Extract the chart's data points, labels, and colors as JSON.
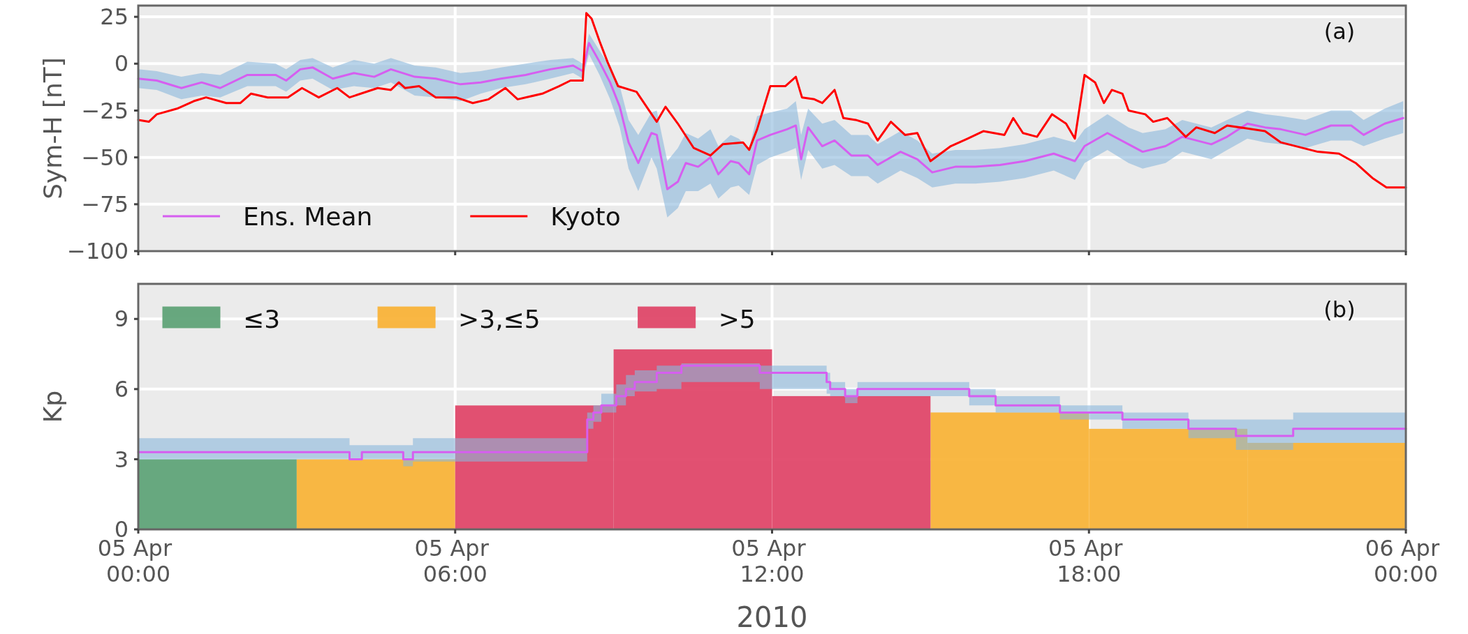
{
  "chart_data": [
    {
      "type": "line",
      "ylabel": "Sym-H [nT]",
      "xlim": [
        "2010-04-05T00:00",
        "2010-04-06T00:00"
      ],
      "ylim": [
        -100,
        31
      ],
      "xticks": [
        {
          "value": "2010-04-05T00:00",
          "label": null
        },
        {
          "value": "2010-04-05T06:00",
          "label": null
        },
        {
          "value": "2010-04-05T12:00",
          "label": null
        },
        {
          "value": "2010-04-05T18:00",
          "label": null
        },
        {
          "value": "2010-04-06T00:00",
          "label": null
        }
      ],
      "yticks": [
        {
          "value": -100,
          "label": "−100"
        },
        {
          "value": -75,
          "label": "−75"
        },
        {
          "value": -50,
          "label": "−50"
        },
        {
          "value": -25,
          "label": "−25"
        },
        0,
        25
      ],
      "grid": true,
      "legend": "bottom left",
      "tick_labels": "y",
      "annotations": [
        "(a)"
      ],
      "series": [
        {
          "name": "Ens. Mean",
          "color": "#d65ef0",
          "x": [
            "2010-04-05T00:00",
            "2010-04-05T00:21",
            "2010-04-05T00:49",
            "2010-04-05T01:12",
            "2010-04-05T01:33",
            "2010-04-05T02:04",
            "2010-04-05T02:36",
            "2010-04-05T02:48",
            "2010-04-05T03:04",
            "2010-04-05T03:18",
            "2010-04-05T03:41",
            "2010-04-05T04:05",
            "2010-04-05T04:28",
            "2010-04-05T04:47",
            "2010-04-05T05:14",
            "2010-04-05T05:38",
            "2010-04-05T06:06",
            "2010-04-05T06:29",
            "2010-04-05T06:52",
            "2010-04-05T07:20",
            "2010-04-05T07:48",
            "2010-04-05T08:14",
            "2010-04-05T08:25",
            "2010-04-05T08:32",
            "2010-04-05T08:44",
            "2010-04-05T08:56",
            "2010-04-05T09:07",
            "2010-04-05T09:17",
            "2010-04-05T09:28",
            "2010-04-05T09:43",
            "2010-04-05T09:49",
            "2010-04-05T10:01",
            "2010-04-05T10:13",
            "2010-04-05T10:22",
            "2010-04-05T10:36",
            "2010-04-05T10:50",
            "2010-04-05T10:59",
            "2010-04-05T11:13",
            "2010-04-05T11:22",
            "2010-04-05T11:34",
            "2010-04-05T11:43",
            "2010-04-05T11:58",
            "2010-04-05T12:17",
            "2010-04-05T12:27",
            "2010-04-05T12:33",
            "2010-04-05T12:41",
            "2010-04-05T12:57",
            "2010-04-05T13:11",
            "2010-04-05T13:30",
            "2010-04-05T13:49",
            "2010-04-05T14:00",
            "2010-04-05T14:26",
            "2010-04-05T14:45",
            "2010-04-05T15:02",
            "2010-04-05T15:28",
            "2010-04-05T15:51",
            "2010-04-05T16:19",
            "2010-04-05T16:47",
            "2010-04-05T17:20",
            "2010-04-05T17:44",
            "2010-04-05T17:55",
            "2010-04-05T18:21",
            "2010-04-05T18:45",
            "2010-04-05T19:01",
            "2010-04-05T19:27",
            "2010-04-05T19:46",
            "2010-04-05T20:19",
            "2010-04-05T20:37",
            "2010-04-05T21:00",
            "2010-04-05T21:20",
            "2010-04-05T21:38",
            "2010-04-05T22:06",
            "2010-04-05T22:35",
            "2010-04-05T22:58",
            "2010-04-05T23:12",
            "2010-04-05T23:36",
            "2010-04-05T23:57"
          ],
          "values": [
            -8,
            -9,
            -13,
            -10,
            -13,
            -6,
            -6,
            -9,
            -3,
            -2,
            -8,
            -5,
            -7,
            -3,
            -7,
            -8,
            -11,
            -10,
            -8,
            -6,
            -3,
            -1,
            -4,
            11,
            1,
            -10,
            -23,
            -42,
            -53,
            -37,
            -38,
            -67,
            -63,
            -53,
            -55,
            -50,
            -59,
            -52,
            -53,
            -59,
            -41,
            -38,
            -35,
            -33,
            -51,
            -34,
            -44,
            -41,
            -49,
            -49,
            -54,
            -47,
            -51,
            -58,
            -55,
            -55,
            -54,
            -52,
            -48,
            -52,
            -44,
            -37,
            -43,
            -47,
            -44,
            -39,
            -43,
            -39,
            -32,
            -34,
            -35,
            -38,
            -33,
            -33,
            -38,
            -32,
            -29
          ],
          "lower": [
            -13,
            -14,
            -19,
            -17,
            -18,
            -12,
            -12,
            -15,
            -9,
            -8,
            -14,
            -12,
            -13,
            -10,
            -17,
            -18,
            -20,
            -16,
            -13,
            -11,
            -8,
            -5,
            -8,
            5,
            -6,
            -19,
            -34,
            -56,
            -68,
            -50,
            -56,
            -82,
            -77,
            -68,
            -68,
            -64,
            -72,
            -66,
            -65,
            -70,
            -54,
            -50,
            -47,
            -45,
            -62,
            -46,
            -56,
            -54,
            -60,
            -60,
            -64,
            -57,
            -61,
            -66,
            -64,
            -64,
            -63,
            -61,
            -57,
            -62,
            -53,
            -46,
            -53,
            -56,
            -53,
            -47,
            -51,
            -46,
            -40,
            -42,
            -43,
            -45,
            -41,
            -41,
            -44,
            -40,
            -37
          ],
          "upper": [
            -3,
            -4,
            -7,
            -5,
            -6,
            1,
            0,
            -3,
            2,
            3,
            -2,
            2,
            0,
            3,
            -1,
            -2,
            -5,
            -4,
            -2,
            0,
            2,
            3,
            0,
            16,
            7,
            -2,
            -12,
            -30,
            -38,
            -26,
            -25,
            -52,
            -45,
            -37,
            -40,
            -35,
            -44,
            -38,
            -40,
            -45,
            -28,
            -26,
            -24,
            -20,
            -38,
            -24,
            -32,
            -30,
            -38,
            -38,
            -43,
            -36,
            -41,
            -48,
            -46,
            -46,
            -45,
            -43,
            -39,
            -42,
            -35,
            -27,
            -34,
            -37,
            -35,
            -30,
            -34,
            -30,
            -25,
            -27,
            -28,
            -30,
            -25,
            -25,
            -30,
            -24,
            -20
          ]
        },
        {
          "name": "Kyoto",
          "color": "#ff0000",
          "x": [
            "2010-04-05T00:00",
            "2010-04-05T00:12",
            "2010-04-05T00:21",
            "2010-04-05T00:44",
            "2010-04-05T01:03",
            "2010-04-05T01:17",
            "2010-04-05T01:40",
            "2010-04-05T01:56",
            "2010-04-05T02:08",
            "2010-04-05T02:27",
            "2010-04-05T02:50",
            "2010-04-05T03:06",
            "2010-04-05T03:25",
            "2010-04-05T03:46",
            "2010-04-05T04:00",
            "2010-04-05T04:32",
            "2010-04-05T04:47",
            "2010-04-05T04:56",
            "2010-04-05T05:03",
            "2010-04-05T05:19",
            "2010-04-05T05:38",
            "2010-04-05T06:01",
            "2010-04-05T06:20",
            "2010-04-05T06:38",
            "2010-04-05T06:57",
            "2010-04-05T07:11",
            "2010-04-05T07:39",
            "2010-04-05T07:58",
            "2010-04-05T08:11",
            "2010-04-05T08:25",
            "2010-04-05T08:29",
            "2010-04-05T08:35",
            "2010-04-05T08:44",
            "2010-04-05T08:53",
            "2010-04-05T09:05",
            "2010-04-05T09:26",
            "2010-04-05T09:49",
            "2010-04-05T09:59",
            "2010-04-05T10:13",
            "2010-04-05T10:31",
            "2010-04-05T10:50",
            "2010-04-05T11:04",
            "2010-04-05T11:27",
            "2010-04-05T11:34",
            "2010-04-05T11:43",
            "2010-04-05T11:58",
            "2010-04-05T12:15",
            "2010-04-05T12:27",
            "2010-04-05T12:34",
            "2010-04-05T12:48",
            "2010-04-05T12:57",
            "2010-04-05T13:11",
            "2010-04-05T13:21",
            "2010-04-05T13:35",
            "2010-04-05T13:49",
            "2010-04-05T14:00",
            "2010-04-05T14:15",
            "2010-04-05T14:31",
            "2010-04-05T14:45",
            "2010-04-05T15:00",
            "2010-04-05T15:23",
            "2010-04-05T15:42",
            "2010-04-05T16:00",
            "2010-04-05T16:24",
            "2010-04-05T16:34",
            "2010-04-05T16:45",
            "2010-04-05T17:01",
            "2010-04-05T17:18",
            "2010-04-05T17:34",
            "2010-04-05T17:44",
            "2010-04-05T17:55",
            "2010-04-05T18:07",
            "2010-04-05T18:17",
            "2010-04-05T18:26",
            "2010-04-05T18:38",
            "2010-04-05T18:45",
            "2010-04-05T19:04",
            "2010-04-05T19:13",
            "2010-04-05T19:29",
            "2010-04-05T19:50",
            "2010-04-05T20:02",
            "2010-04-05T20:23",
            "2010-04-05T20:37",
            "2010-04-05T21:20",
            "2010-04-05T21:38",
            "2010-04-05T22:20",
            "2010-04-05T22:44",
            "2010-04-05T23:03",
            "2010-04-05T23:22",
            "2010-04-05T23:38",
            "2010-04-06T00:00"
          ],
          "values": [
            -30,
            -31,
            -27,
            -24,
            -20,
            -18,
            -21,
            -21,
            -16,
            -18,
            -18,
            -13,
            -18,
            -13,
            -18,
            -13,
            -14,
            -10,
            -13,
            -12,
            -18,
            -18,
            -21,
            -19,
            -13,
            -19,
            -16,
            -12,
            -9,
            -9,
            27,
            24,
            12,
            1,
            -12,
            -15,
            -31,
            -23,
            -32,
            -45,
            -49,
            -43,
            -42,
            -46,
            -35,
            -12,
            -12,
            -7,
            -18,
            -19,
            -21,
            -14,
            -29,
            -30,
            -32,
            -41,
            -31,
            -38,
            -37,
            -52,
            -44,
            -40,
            -36,
            -38,
            -29,
            -37,
            -39,
            -27,
            -32,
            -40,
            -6,
            -10,
            -21,
            -14,
            -16,
            -25,
            -27,
            -31,
            -29,
            -39,
            -34,
            -37,
            -33,
            -36,
            -42,
            -47,
            -48,
            -53,
            -61,
            -66,
            -66
          ]
        }
      ]
    },
    {
      "type": "bar",
      "ylabel": "Kp",
      "xlabel": "2010",
      "xlim": [
        "2010-04-05T00:00",
        "2010-04-06T00:00"
      ],
      "ylim": [
        0,
        10.5
      ],
      "xticks": [
        {
          "value": "2010-04-05T00:00",
          "label": "05 Apr 00:00"
        },
        {
          "value": "2010-04-05T06:00",
          "label": "05 Apr 06:00"
        },
        {
          "value": "2010-04-05T12:00",
          "label": "05 Apr 12:00"
        },
        {
          "value": "2010-04-05T18:00",
          "label": "05 Apr 18:00"
        },
        {
          "value": "2010-04-06T00:00",
          "label": "06 Apr 00:00"
        }
      ],
      "yticks": [
        0,
        3,
        6,
        9
      ],
      "grid": true,
      "legend": "top left",
      "annotations": [
        "(b)"
      ],
      "series": [
        {
          "name": "≤3",
          "color": "#60a479",
          "x": [
            "2010-04-05T01:30"
          ],
          "values": [
            3.0
          ]
        },
        {
          "name": ">3,≤5",
          "color": "#f9b43a",
          "x": [
            "2010-04-05T04:30",
            "2010-04-05T16:30",
            "2010-04-05T19:30",
            "2010-04-05T22:30"
          ],
          "values": [
            3.0,
            5.0,
            4.3,
            3.7
          ]
        },
        {
          "name": ">5",
          "color": "#e0486a",
          "x": [
            "2010-04-05T07:30",
            "2010-04-05T10:30",
            "2010-04-05T13:30"
          ],
          "values": [
            5.3,
            7.7,
            5.7
          ]
        },
        {
          "type": "step",
          "color": "#d65ef0",
          "x": [
            "2010-04-05T00:00",
            "2010-04-05T04:00",
            "2010-04-05T04:14",
            "2010-04-05T05:01",
            "2010-04-05T05:12",
            "2010-04-05T08:30",
            "2010-04-05T08:37",
            "2010-04-05T08:46",
            "2010-04-05T09:03",
            "2010-04-05T09:14",
            "2010-04-05T09:24",
            "2010-04-05T09:49",
            "2010-04-05T10:17",
            "2010-04-05T11:46",
            "2010-04-05T13:02",
            "2010-04-05T13:06",
            "2010-04-05T13:23",
            "2010-04-05T13:37",
            "2010-04-05T15:44",
            "2010-04-05T16:14",
            "2010-04-05T17:27",
            "2010-04-05T18:38",
            "2010-04-05T19:53",
            "2010-04-05T20:47",
            "2010-04-05T21:52",
            "2010-04-06T00:00"
          ],
          "values": [
            3.3,
            3.0,
            3.3,
            3.0,
            3.3,
            4.7,
            5.0,
            5.3,
            5.7,
            6.0,
            6.3,
            6.7,
            7.0,
            6.7,
            6.3,
            6.0,
            5.7,
            6.0,
            5.7,
            5.3,
            5.0,
            4.7,
            4.3,
            4.0,
            4.3,
            4.3
          ],
          "lower": [
            3.0,
            3.0,
            3.0,
            2.7,
            2.9,
            4.3,
            4.6,
            5.0,
            5.3,
            5.7,
            5.9,
            6.0,
            6.3,
            6.0,
            5.8,
            5.7,
            5.4,
            5.7,
            5.3,
            5.0,
            4.7,
            4.3,
            3.9,
            3.4,
            3.7,
            3.7
          ],
          "upper": [
            3.9,
            3.6,
            3.6,
            3.6,
            3.9,
            5.0,
            5.3,
            5.8,
            6.2,
            6.6,
            6.8,
            7.0,
            7.1,
            7.0,
            6.7,
            6.3,
            6.0,
            6.3,
            6.0,
            5.7,
            5.3,
            5.0,
            4.7,
            4.7,
            5.0,
            5.0
          ]
        }
      ]
    }
  ]
}
